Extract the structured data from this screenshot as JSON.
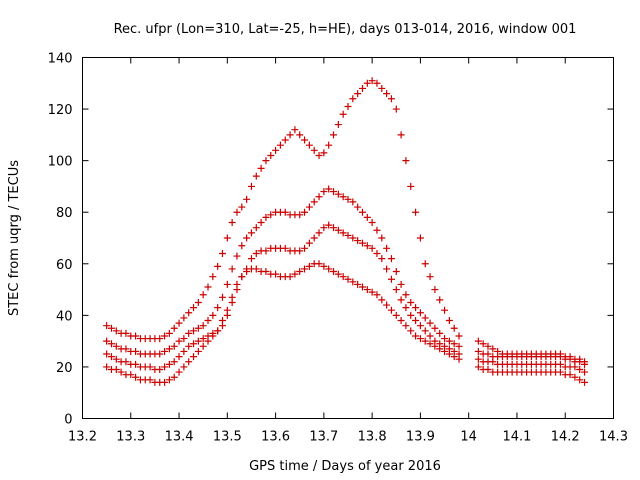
{
  "chart_data": {
    "type": "scatter",
    "title": "Rec. ufpr (Lon=310, Lat=-25, h=HE), days 013-014, 2016, window 001",
    "xlabel": "GPS time / Days of year 2016",
    "ylabel": "STEC from uqrg / TECUs",
    "xlim": [
      13.2,
      14.3
    ],
    "ylim": [
      0,
      140
    ],
    "xticks": [
      "13.2",
      "13.3",
      "13.4",
      "13.5",
      "13.6",
      "13.7",
      "13.8",
      "13.9",
      "14",
      "14.1",
      "14.2",
      "14.3"
    ],
    "yticks": [
      "0",
      "20",
      "40",
      "60",
      "80",
      "100",
      "120",
      "140"
    ],
    "marker": "+",
    "color": "#cc0000",
    "grid": false,
    "series": [
      {
        "x": [
          13.25,
          13.26,
          13.27,
          13.28,
          13.29,
          13.3,
          13.31,
          13.32,
          13.33,
          13.34,
          13.35,
          13.36,
          13.37,
          13.38,
          13.39,
          13.4,
          13.41,
          13.42,
          13.43,
          13.44,
          13.45,
          13.46,
          13.47,
          13.48,
          13.49,
          13.5,
          13.51,
          13.52,
          13.53,
          13.54,
          13.55,
          13.56,
          13.57,
          13.58,
          13.59,
          13.6,
          13.61,
          13.62,
          13.63,
          13.64,
          13.65,
          13.66,
          13.67,
          13.68,
          13.69,
          13.7,
          13.71,
          13.72,
          13.73,
          13.74,
          13.75,
          13.76,
          13.77,
          13.78,
          13.79,
          13.8,
          13.81,
          13.82,
          13.83,
          13.84,
          13.85,
          13.86,
          13.87,
          13.88,
          13.89,
          13.9,
          13.91,
          13.92,
          13.93,
          13.94,
          13.95,
          13.96,
          13.97,
          13.98,
          14.02,
          14.03,
          14.04,
          14.05,
          14.06,
          14.07,
          14.08,
          14.09,
          14.1,
          14.11,
          14.12,
          14.13,
          14.14,
          14.15,
          14.16,
          14.17,
          14.18,
          14.19,
          14.2,
          14.21,
          14.22,
          14.23,
          14.24
        ],
        "y": [
          20,
          19,
          19,
          18,
          17,
          17,
          16,
          15,
          15,
          15,
          14,
          14,
          14,
          15,
          16,
          18,
          20,
          22,
          24,
          26,
          28,
          30,
          32,
          34,
          38,
          42,
          47,
          52,
          55,
          57,
          58,
          58,
          57,
          57,
          56,
          56,
          55,
          55,
          55,
          56,
          57,
          58,
          59,
          60,
          60,
          59,
          58,
          57,
          56,
          55,
          54,
          53,
          52,
          51,
          50,
          49,
          48,
          46,
          44,
          42,
          40,
          38,
          36,
          34,
          32,
          31,
          30,
          29,
          28,
          27,
          26,
          25,
          24,
          23,
          20,
          19,
          19,
          18,
          18,
          18,
          18,
          18,
          18,
          18,
          18,
          18,
          18,
          18,
          18,
          18,
          18,
          18,
          17,
          17,
          16,
          15,
          14
        ]
      },
      {
        "x": [
          13.25,
          13.26,
          13.27,
          13.28,
          13.29,
          13.3,
          13.31,
          13.32,
          13.33,
          13.34,
          13.35,
          13.36,
          13.37,
          13.38,
          13.39,
          13.4,
          13.41,
          13.42,
          13.43,
          13.44,
          13.45,
          13.46,
          13.47,
          13.48,
          13.49,
          13.5,
          13.51,
          13.52,
          13.53,
          13.54,
          13.55,
          13.56,
          13.57,
          13.58,
          13.59,
          13.6,
          13.61,
          13.62,
          13.63,
          13.64,
          13.65,
          13.66,
          13.67,
          13.68,
          13.69,
          13.7,
          13.71,
          13.72,
          13.73,
          13.74,
          13.75,
          13.76,
          13.77,
          13.78,
          13.79,
          13.8,
          13.81,
          13.82,
          13.83,
          13.84,
          13.85,
          13.86,
          13.87,
          13.88,
          13.89,
          13.9,
          13.91,
          13.92,
          13.93,
          13.94,
          13.95,
          13.96,
          13.97,
          13.98,
          14.02,
          14.03,
          14.04,
          14.05,
          14.06,
          14.07,
          14.08,
          14.09,
          14.1,
          14.11,
          14.12,
          14.13,
          14.14,
          14.15,
          14.16,
          14.17,
          14.18,
          14.19,
          14.2,
          14.21,
          14.22,
          14.23,
          14.24
        ],
        "y": [
          25,
          24,
          23,
          22,
          22,
          21,
          21,
          20,
          20,
          20,
          19,
          19,
          20,
          21,
          22,
          24,
          26,
          28,
          29,
          30,
          31,
          32,
          33,
          34,
          36,
          40,
          45,
          50,
          55,
          58,
          62,
          64,
          65,
          65,
          66,
          66,
          66,
          66,
          65,
          65,
          65,
          66,
          68,
          70,
          72,
          74,
          75,
          74,
          73,
          72,
          71,
          70,
          69,
          68,
          67,
          66,
          64,
          62,
          58,
          54,
          50,
          46,
          43,
          40,
          38,
          36,
          34,
          32,
          30,
          29,
          28,
          27,
          26,
          25,
          23,
          22,
          22,
          22,
          21,
          21,
          21,
          21,
          21,
          21,
          21,
          21,
          21,
          21,
          21,
          21,
          21,
          21,
          20,
          20,
          20,
          19,
          18
        ]
      },
      {
        "x": [
          13.25,
          13.26,
          13.27,
          13.28,
          13.29,
          13.3,
          13.31,
          13.32,
          13.33,
          13.34,
          13.35,
          13.36,
          13.37,
          13.38,
          13.39,
          13.4,
          13.41,
          13.42,
          13.43,
          13.44,
          13.45,
          13.46,
          13.47,
          13.48,
          13.49,
          13.5,
          13.51,
          13.52,
          13.53,
          13.54,
          13.55,
          13.56,
          13.57,
          13.58,
          13.59,
          13.6,
          13.61,
          13.62,
          13.63,
          13.64,
          13.65,
          13.66,
          13.67,
          13.68,
          13.69,
          13.7,
          13.71,
          13.72,
          13.73,
          13.74,
          13.75,
          13.76,
          13.77,
          13.78,
          13.79,
          13.8,
          13.81,
          13.82,
          13.83,
          13.84,
          13.85,
          13.86,
          13.87,
          13.88,
          13.89,
          13.9,
          13.91,
          13.92,
          13.93,
          13.94,
          13.95,
          13.96,
          13.97,
          13.98,
          14.02,
          14.03,
          14.04,
          14.05,
          14.06,
          14.07,
          14.08,
          14.09,
          14.1,
          14.11,
          14.12,
          14.13,
          14.14,
          14.15,
          14.16,
          14.17,
          14.18,
          14.19,
          14.2,
          14.21,
          14.22,
          14.23,
          14.24
        ],
        "y": [
          30,
          29,
          28,
          27,
          27,
          26,
          26,
          25,
          25,
          25,
          25,
          25,
          26,
          27,
          28,
          30,
          31,
          33,
          34,
          35,
          36,
          38,
          40,
          43,
          47,
          52,
          58,
          63,
          67,
          70,
          72,
          74,
          76,
          78,
          79,
          80,
          80,
          80,
          79,
          79,
          79,
          80,
          82,
          84,
          86,
          88,
          89,
          88,
          87,
          86,
          85,
          84,
          82,
          80,
          78,
          76,
          73,
          70,
          66,
          62,
          57,
          52,
          48,
          45,
          43,
          41,
          39,
          37,
          35,
          33,
          31,
          30,
          29,
          28,
          26,
          25,
          25,
          24,
          24,
          24,
          24,
          24,
          24,
          24,
          24,
          24,
          24,
          24,
          24,
          24,
          24,
          24,
          23,
          23,
          22,
          22,
          21
        ]
      },
      {
        "x": [
          13.25,
          13.26,
          13.27,
          13.28,
          13.29,
          13.3,
          13.31,
          13.32,
          13.33,
          13.34,
          13.35,
          13.36,
          13.37,
          13.38,
          13.39,
          13.4,
          13.41,
          13.42,
          13.43,
          13.44,
          13.45,
          13.46,
          13.47,
          13.48,
          13.49,
          13.5,
          13.51,
          13.52,
          13.53,
          13.54,
          13.55,
          13.56,
          13.57,
          13.58,
          13.59,
          13.6,
          13.61,
          13.62,
          13.63,
          13.64,
          13.65,
          13.66,
          13.67,
          13.68,
          13.69,
          13.7,
          13.71,
          13.72,
          13.73,
          13.74,
          13.75,
          13.76,
          13.77,
          13.78,
          13.79,
          13.8,
          13.81,
          13.82,
          13.83,
          13.84,
          13.85,
          13.86,
          13.87,
          13.88,
          13.89,
          13.9,
          13.91,
          13.92,
          13.93,
          13.94,
          13.95,
          13.96,
          13.97,
          13.98,
          14.02,
          14.03,
          14.04,
          14.05,
          14.06,
          14.07,
          14.08,
          14.09,
          14.1,
          14.11,
          14.12,
          14.13,
          14.14,
          14.15,
          14.16,
          14.17,
          14.18,
          14.19,
          14.2,
          14.21,
          14.22,
          14.23,
          14.24
        ],
        "y": [
          36,
          35,
          34,
          33,
          33,
          32,
          32,
          31,
          31,
          31,
          31,
          31,
          32,
          33,
          35,
          37,
          39,
          41,
          43,
          45,
          48,
          51,
          55,
          59,
          64,
          70,
          76,
          80,
          82,
          85,
          90,
          94,
          97,
          100,
          102,
          104,
          106,
          108,
          110,
          112,
          110,
          108,
          106,
          104,
          102,
          103,
          106,
          110,
          114,
          118,
          121,
          124,
          126,
          128,
          130,
          131,
          130,
          128,
          126,
          124,
          120,
          110,
          100,
          90,
          80,
          70,
          60,
          55,
          50,
          46,
          42,
          38,
          35,
          32,
          30,
          29,
          28,
          27,
          26,
          25,
          25,
          25,
          25,
          25,
          25,
          25,
          25,
          25,
          25,
          25,
          25,
          25,
          24,
          24,
          23,
          23,
          22
        ]
      }
    ]
  }
}
